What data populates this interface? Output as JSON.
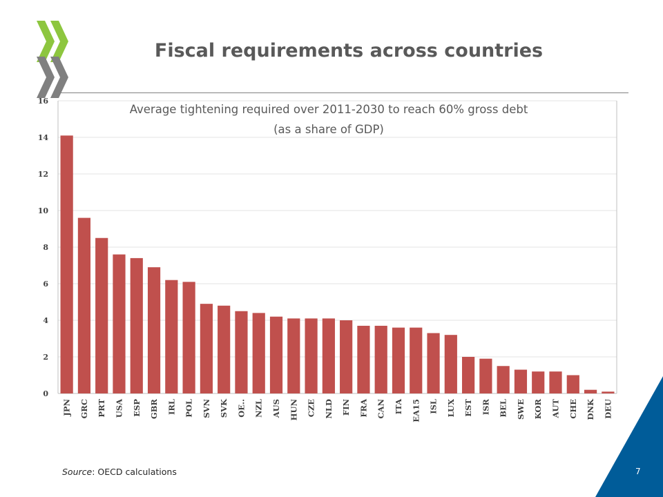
{
  "slide": {
    "title": "Fiscal requirements across countries",
    "source_label": "Source",
    "source_text": ": OECD calculations",
    "page_number": "7"
  },
  "colors": {
    "bar": "#C0504D",
    "logo_green": "#8DC63F",
    "logo_grey": "#808080",
    "corner_blue": "#005C99"
  },
  "chart_data": {
    "type": "bar",
    "title_lines": [
      "Average tightening required over 2011-2030 to reach 60% gross debt",
      "(as a share of GDP)"
    ],
    "categories": [
      "JPN",
      "GRC",
      "PRT",
      "USA",
      "ESP",
      "GBR",
      "IRL",
      "POL",
      "SVN",
      "SVK",
      "OE..",
      "NZL",
      "AUS",
      "HUN",
      "CZE",
      "NLD",
      "FIN",
      "FRA",
      "CAN",
      "ITA",
      "EA15",
      "ISL",
      "LUX",
      "EST",
      "ISR",
      "BEL",
      "SWE",
      "KOR",
      "AUT",
      "CHE",
      "DNK",
      "DEU"
    ],
    "values": [
      14.1,
      9.6,
      8.5,
      7.6,
      7.4,
      6.9,
      6.2,
      6.1,
      4.9,
      4.8,
      4.5,
      4.4,
      4.2,
      4.1,
      4.1,
      4.1,
      4.0,
      3.7,
      3.7,
      3.6,
      3.6,
      3.3,
      3.2,
      2.0,
      1.9,
      1.5,
      1.3,
      1.2,
      1.2,
      1.0,
      0.2,
      0.1
    ],
    "ylim": [
      0,
      16
    ],
    "yticks": [
      "0",
      "2",
      "4",
      "6",
      "8",
      "10",
      "12",
      "14",
      "16"
    ],
    "ytick_values": [
      0,
      2,
      4,
      6,
      8,
      10,
      12,
      14,
      16
    ],
    "grid": true,
    "legend": "none"
  }
}
